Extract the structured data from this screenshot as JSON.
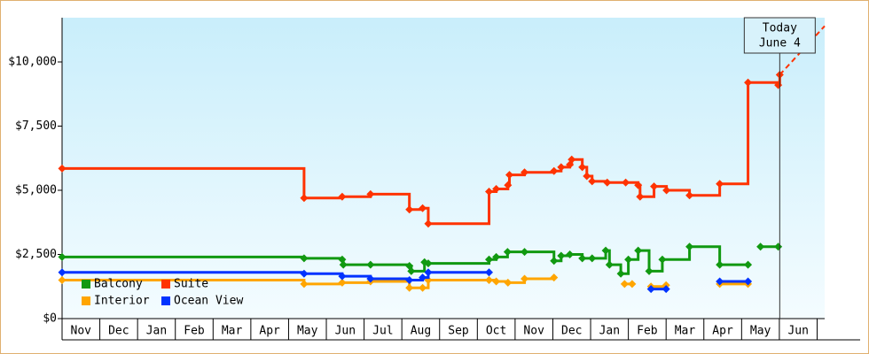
{
  "chart_data": {
    "type": "step-line",
    "categories": [
      "Nov",
      "Dec",
      "Jan",
      "Feb",
      "Mar",
      "Apr",
      "May",
      "Jun",
      "Jul",
      "Aug",
      "Sep",
      "Oct",
      "Nov",
      "Dec",
      "Jan",
      "Feb",
      "Mar",
      "Apr",
      "May",
      "Jun"
    ],
    "xlim": [
      0,
      20.2
    ],
    "ylim": [
      0,
      11724
    ],
    "yticks": [
      {
        "value": 0,
        "label": "$0"
      },
      {
        "value": 2500,
        "label": "$2,500"
      },
      {
        "value": 5000,
        "label": "$5,000"
      },
      {
        "value": 7500,
        "label": "$7,500"
      },
      {
        "value": 10000,
        "label": "$10,000"
      }
    ],
    "series": [
      {
        "name": "Balcony",
        "color": "#119911",
        "x": [
          0,
          6.41,
          7.42,
          7.45,
          8.17,
          9.2,
          9.25,
          9.6,
          9.7,
          11.31,
          11.5,
          11.8,
          12.25,
          13.03,
          13.22,
          13.45,
          13.78,
          14.04,
          14.4,
          14.5,
          14.8,
          15.0,
          15.26,
          15.55,
          15.9,
          16.62,
          17.42,
          18.17,
          null,
          18.5,
          18.97
        ],
        "values": [
          2400,
          2350,
          2300,
          2100,
          2100,
          2050,
          1850,
          2200,
          2150,
          2300,
          2400,
          2600,
          2600,
          2250,
          2450,
          2500,
          2350,
          2350,
          2650,
          2100,
          1750,
          2300,
          2650,
          1850,
          2300,
          2800,
          2100,
          2100,
          null,
          2800,
          2800
        ]
      },
      {
        "name": "Suite",
        "color": "#ff3300",
        "x": [
          0,
          6.41,
          7.42,
          8.17,
          9.2,
          9.55,
          9.7,
          11.31,
          11.5,
          11.81,
          11.85,
          12.25,
          13.03,
          13.22,
          13.45,
          13.5,
          13.78,
          13.9,
          14.04,
          14.44,
          14.93,
          15.26,
          15.31,
          15.68,
          16.01,
          16.62,
          17.42,
          18.17,
          18.97,
          19.01
        ],
        "values": [
          5850,
          4700,
          4750,
          4850,
          4250,
          4300,
          3700,
          4950,
          5050,
          5200,
          5600,
          5700,
          5750,
          5900,
          6000,
          6200,
          5900,
          5550,
          5350,
          5300,
          5300,
          5200,
          4750,
          5150,
          5000,
          4800,
          5250,
          9200,
          9100,
          9500
        ],
        "projection": {
          "x": [
            19.01,
            20.2
          ],
          "values": [
            9500,
            11400
          ]
        }
      },
      {
        "name": "Interior",
        "color": "#ffa500",
        "x": [
          0,
          6.41,
          7.42,
          8.17,
          9.2,
          9.55,
          9.7,
          11.31,
          11.5,
          11.81,
          12.25,
          13.03,
          null,
          14.9,
          15.1,
          null,
          15.6,
          16.0,
          null,
          17.42,
          18.17
        ],
        "values": [
          1500,
          1350,
          1400,
          1450,
          1200,
          1200,
          1500,
          1500,
          1450,
          1400,
          1550,
          1600,
          null,
          1350,
          1350,
          null,
          1250,
          1300,
          null,
          1350,
          1350
        ]
      },
      {
        "name": "Ocean View",
        "color": "#0033ff",
        "x": [
          0,
          6.41,
          7.42,
          8.17,
          9.2,
          9.55,
          9.7,
          11.31,
          null,
          15.6,
          16.0,
          null,
          17.42,
          18.17
        ],
        "values": [
          1800,
          1750,
          1650,
          1550,
          1500,
          1600,
          1800,
          1800,
          null,
          1150,
          1150,
          null,
          1450,
          1450
        ]
      }
    ],
    "today": {
      "x": 19.01,
      "label": [
        "Today",
        "June 4"
      ]
    }
  }
}
